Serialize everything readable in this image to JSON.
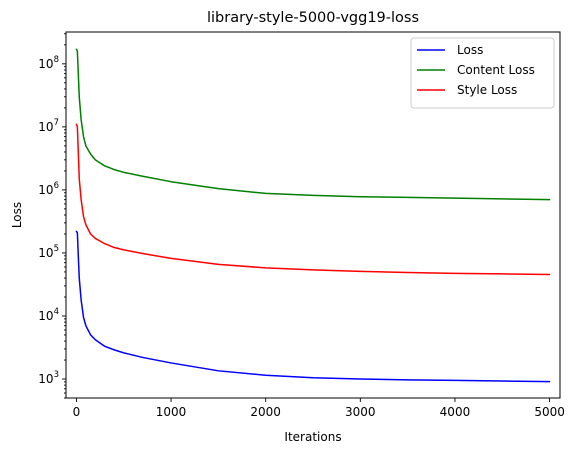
{
  "chart_data": {
    "type": "line",
    "title": "library-style-5000-vgg19-loss",
    "xlabel": "Iterations",
    "ylabel": "Loss",
    "yscale": "log",
    "xlim": [
      -110,
      5110
    ],
    "ylim": [
      500,
      320000000
    ],
    "grid": false,
    "legend_position": "top-right",
    "x_ticks": [
      0,
      1000,
      2000,
      3000,
      4000,
      5000
    ],
    "x_tick_labels": [
      "0",
      "1000",
      "2000",
      "3000",
      "4000",
      "5000"
    ],
    "y_ticks": [
      1000,
      10000,
      100000,
      1000000,
      10000000,
      100000000
    ],
    "y_tick_labels": [
      {
        "base": "10",
        "exp": "3"
      },
      {
        "base": "10",
        "exp": "4"
      },
      {
        "base": "10",
        "exp": "5"
      },
      {
        "base": "10",
        "exp": "6"
      },
      {
        "base": "10",
        "exp": "7"
      },
      {
        "base": "10",
        "exp": "8"
      }
    ],
    "x": [
      0,
      10,
      20,
      30,
      50,
      75,
      100,
      150,
      200,
      300,
      400,
      500,
      700,
      1000,
      1500,
      2000,
      2500,
      3000,
      3500,
      4000,
      4500,
      5000
    ],
    "series": [
      {
        "name": "Loss",
        "color": "#0000ff",
        "values": [
          220000,
          210000,
          90000,
          40000,
          18000,
          9500,
          7000,
          5000,
          4200,
          3300,
          2900,
          2600,
          2200,
          1800,
          1350,
          1150,
          1050,
          1000,
          970,
          950,
          930,
          910
        ]
      },
      {
        "name": "Content Loss",
        "color": "#008000",
        "values": [
          170000000,
          160000000,
          70000000,
          30000000,
          13000000,
          7000000,
          5000000,
          3700000,
          3000000,
          2400000,
          2100000,
          1900000,
          1650000,
          1350000,
          1050000,
          880000,
          820000,
          780000,
          760000,
          740000,
          720000,
          700000
        ]
      },
      {
        "name": "Style Loss",
        "color": "#ff0000",
        "values": [
          11000000,
          10000000,
          4000000,
          1500000,
          700000,
          380000,
          280000,
          200000,
          170000,
          140000,
          122000,
          112000,
          98000,
          82000,
          66000,
          58000,
          54000,
          51000,
          49000,
          47500,
          46500,
          45500
        ]
      }
    ]
  }
}
